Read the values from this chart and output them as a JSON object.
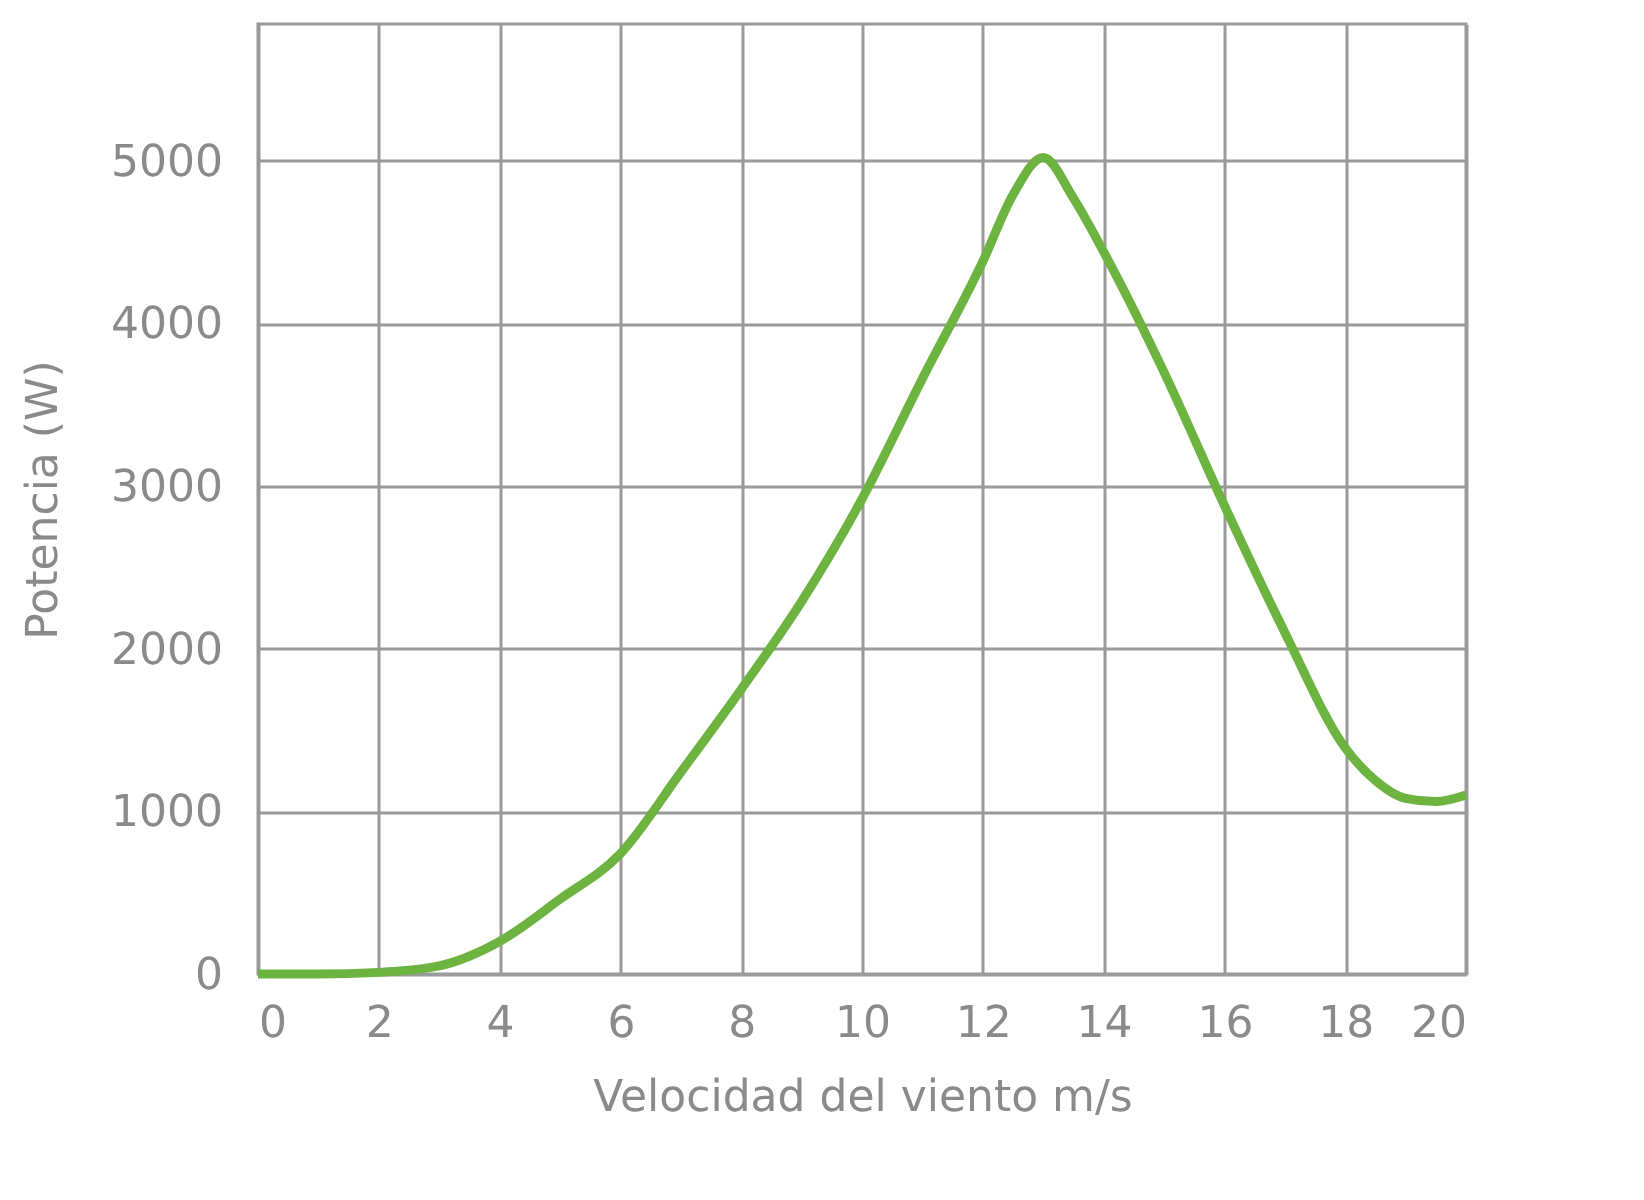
{
  "chart_data": {
    "type": "line",
    "xlabel": "Velocidad del viento m/s",
    "ylabel": "Potencia (W)",
    "x": [
      0,
      1,
      2,
      3,
      4,
      5,
      6,
      7,
      8,
      9,
      10,
      11,
      12,
      12.5,
      13,
      13.5,
      14,
      15,
      16,
      17,
      18,
      18.5,
      19,
      19.5,
      20
    ],
    "series": [
      {
        "color": "#6db33f",
        "values": [
          0,
          0,
          10,
          50,
          200,
          460,
          740,
          1240,
          1750,
          2290,
          2920,
          3660,
          4380,
          4790,
          5020,
          4770,
          4440,
          3700,
          2880,
          2100,
          1390,
          1190,
          1080,
          1060,
          1100
        ]
      }
    ],
    "xlim": [
      0,
      20
    ],
    "xticks": [
      0,
      2,
      4,
      6,
      8,
      10,
      12,
      14,
      16,
      18,
      20
    ],
    "ylim": [
      0,
      5840
    ],
    "yticks": [
      0,
      1000,
      2000,
      3000,
      4000,
      5000
    ],
    "grid": true,
    "marker": "none",
    "line_style": "solid"
  }
}
